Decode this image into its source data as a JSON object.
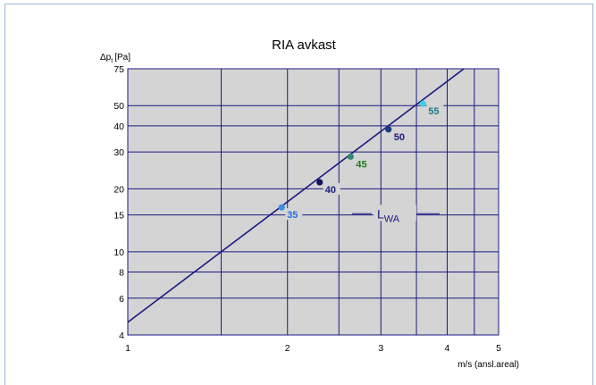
{
  "chart_data": {
    "type": "line",
    "title": "RIA avkast",
    "ylabel_main": "Δp",
    "ylabel_sub": "t",
    "ylabel_unit": "[Pa]",
    "xlabel": "m/s (ansl.areal)",
    "xscale": "log",
    "yscale": "log",
    "xlim": [
      1,
      5
    ],
    "ylim": [
      4,
      75
    ],
    "x_ticks": [
      1,
      2,
      3,
      4,
      5
    ],
    "x_gridlines": [
      1,
      1.5,
      2,
      2.5,
      3,
      3.5,
      4,
      4.5,
      5
    ],
    "y_ticks": [
      4,
      6,
      8,
      10,
      15,
      20,
      30,
      40,
      50,
      75
    ],
    "y_gridlines": [
      4,
      6,
      8,
      10,
      15,
      20,
      30,
      40,
      50,
      75
    ],
    "grid": true,
    "line": {
      "color": "#1a1a80",
      "x": [
        1,
        4.3
      ],
      "y": [
        4.6,
        75
      ]
    },
    "series_label": {
      "main": "L",
      "sub": "WA",
      "x": 2.95,
      "y": 15.2
    },
    "points": [
      {
        "label": "35",
        "x": 1.95,
        "y": 16.3,
        "color": "#3a8ee6",
        "label_color": "#2b6de8"
      },
      {
        "label": "40",
        "x": 2.3,
        "y": 21.5,
        "color": "#14145a",
        "label_color": "#1a1a80"
      },
      {
        "label": "45",
        "x": 2.63,
        "y": 28.5,
        "color": "#2e8a70",
        "label_color": "#1e7a1e"
      },
      {
        "label": "50",
        "x": 3.1,
        "y": 38.5,
        "color": "#1a3c78",
        "label_color": "#1a1a80"
      },
      {
        "label": "55",
        "x": 3.6,
        "y": 51,
        "color": "#3fd0dc",
        "label_color": "#1a7a8a"
      }
    ]
  }
}
